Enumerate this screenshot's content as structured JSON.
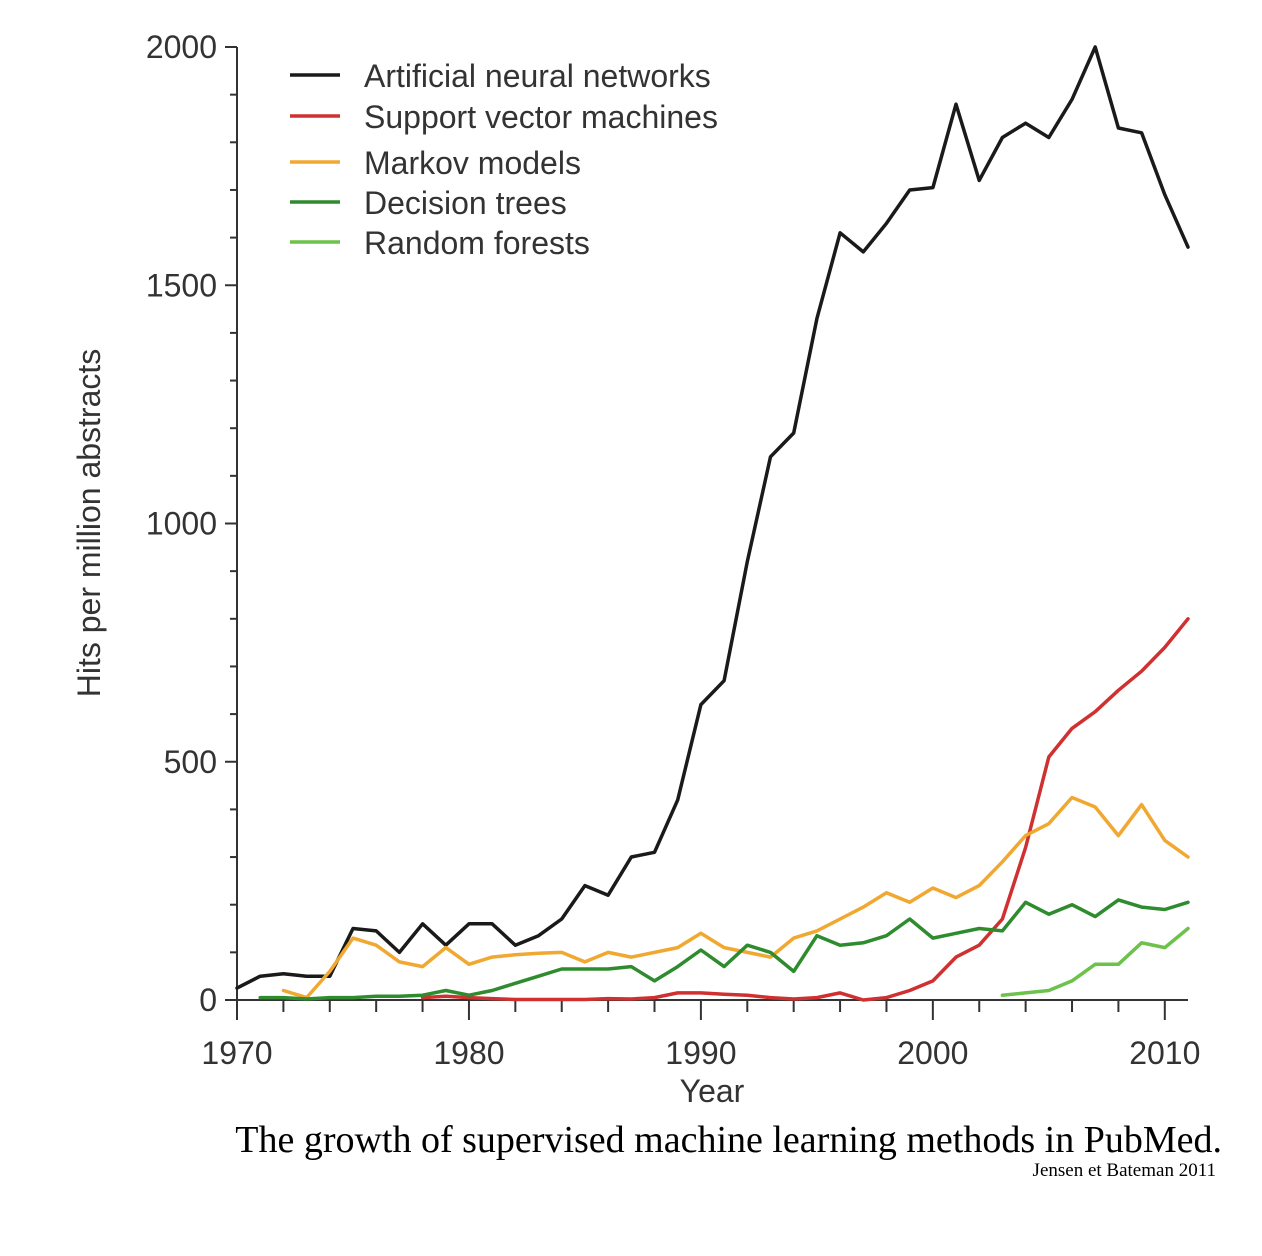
{
  "caption": "The growth of supervised machine learning methods in PubMed.",
  "credit": "Jensen et Bateman 2011",
  "chart_data": {
    "type": "line",
    "xlabel": "Year",
    "ylabel": "Hits per million abstracts",
    "xlim": [
      1970,
      2011
    ],
    "ylim": [
      0,
      2000
    ],
    "x_ticks": [
      1970,
      1980,
      1990,
      2000,
      2010
    ],
    "y_ticks": [
      0,
      500,
      1000,
      1500,
      2000
    ],
    "legend_position": "top-left",
    "grid": false,
    "series": [
      {
        "name": "Artificial neural networks",
        "color": "#1a1a1a",
        "x": [
          1970,
          1971,
          1972,
          1973,
          1974,
          1975,
          1976,
          1977,
          1978,
          1979,
          1980,
          1981,
          1982,
          1983,
          1984,
          1985,
          1986,
          1987,
          1988,
          1989,
          1990,
          1991,
          1992,
          1993,
          1994,
          1995,
          1996,
          1997,
          1998,
          1999,
          2000,
          2001,
          2002,
          2003,
          2004,
          2005,
          2006,
          2007,
          2008,
          2009,
          2010,
          2011
        ],
        "y": [
          25,
          50,
          55,
          50,
          50,
          150,
          145,
          100,
          160,
          115,
          160,
          160,
          115,
          135,
          170,
          240,
          220,
          300,
          310,
          420,
          620,
          670,
          920,
          1140,
          1190,
          1430,
          1610,
          1570,
          1630,
          1700,
          1705,
          1880,
          1720,
          1810,
          1840,
          1810,
          1890,
          2000,
          1830,
          1820,
          1690,
          1580
        ]
      },
      {
        "name": "Support vector machines",
        "color": "#d03030",
        "x": [
          1978,
          1979,
          1980,
          1981,
          1982,
          1983,
          1984,
          1985,
          1986,
          1987,
          1988,
          1989,
          1990,
          1991,
          1992,
          1993,
          1994,
          1995,
          1996,
          1997,
          1998,
          1999,
          2000,
          2001,
          2002,
          2003,
          2004,
          2005,
          2006,
          2007,
          2008,
          2009,
          2010,
          2011
        ],
        "y": [
          5,
          8,
          5,
          3,
          1,
          1,
          1,
          1,
          3,
          2,
          5,
          15,
          15,
          12,
          10,
          5,
          2,
          5,
          15,
          0,
          5,
          20,
          40,
          90,
          115,
          170,
          320,
          510,
          570,
          605,
          650,
          690,
          740,
          800
        ]
      },
      {
        "name": "Markov models",
        "color": "#f0a830",
        "x": [
          1972,
          1973,
          1974,
          1975,
          1976,
          1977,
          1978,
          1979,
          1980,
          1981,
          1982,
          1983,
          1984,
          1985,
          1986,
          1987,
          1988,
          1989,
          1990,
          1991,
          1992,
          1993,
          1994,
          1995,
          1996,
          1997,
          1998,
          1999,
          2000,
          2001,
          2002,
          2003,
          2004,
          2005,
          2006,
          2007,
          2008,
          2009,
          2010,
          2011
        ],
        "y": [
          20,
          5,
          60,
          130,
          115,
          80,
          70,
          110,
          75,
          90,
          95,
          98,
          100,
          80,
          100,
          90,
          100,
          110,
          140,
          110,
          100,
          90,
          130,
          145,
          170,
          195,
          225,
          205,
          235,
          215,
          240,
          290,
          345,
          370,
          425,
          405,
          345,
          410,
          335,
          300
        ]
      },
      {
        "name": "Decision trees",
        "color": "#2e8b2e",
        "x": [
          1971,
          1972,
          1973,
          1974,
          1975,
          1976,
          1977,
          1978,
          1979,
          1980,
          1981,
          1982,
          1983,
          1984,
          1985,
          1986,
          1987,
          1988,
          1989,
          1990,
          1991,
          1992,
          1993,
          1994,
          1995,
          1996,
          1997,
          1998,
          1999,
          2000,
          2001,
          2002,
          2003,
          2004,
          2005,
          2006,
          2007,
          2008,
          2009,
          2010,
          2011
        ],
        "y": [
          5,
          5,
          2,
          5,
          5,
          8,
          8,
          10,
          20,
          10,
          20,
          35,
          50,
          65,
          65,
          65,
          70,
          40,
          70,
          105,
          70,
          115,
          100,
          60,
          135,
          115,
          120,
          135,
          170,
          130,
          140,
          150,
          145,
          205,
          180,
          200,
          175,
          210,
          195,
          190,
          205
        ]
      },
      {
        "name": "Random forests",
        "color": "#6cc24a",
        "x": [
          2003,
          2004,
          2005,
          2006,
          2007,
          2008,
          2009,
          2010,
          2011
        ],
        "y": [
          10,
          15,
          20,
          40,
          75,
          75,
          120,
          110,
          150
        ]
      }
    ]
  }
}
